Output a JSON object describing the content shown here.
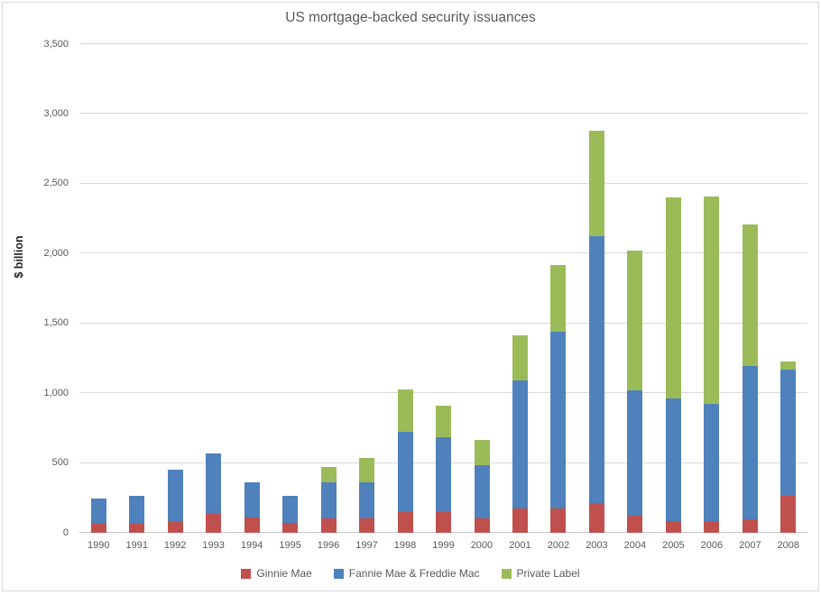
{
  "chart_data": {
    "type": "bar",
    "stacked": true,
    "title": "US mortgage-backed security issuances",
    "ylabel": "$ billion",
    "xlabel": "",
    "categories": [
      "1990",
      "1991",
      "1992",
      "1993",
      "1994",
      "1995",
      "1996",
      "1997",
      "1998",
      "1999",
      "2000",
      "2001",
      "2002",
      "2003",
      "2004",
      "2005",
      "2006",
      "2007",
      "2008"
    ],
    "series": [
      {
        "name": "Ginnie Mae",
        "color": "#C0504D",
        "values": [
          64,
          63,
          82,
          138,
          111,
          73,
          101,
          104,
          149,
          151,
          104,
          175,
          173,
          213,
          125,
          86,
          82,
          95,
          268
        ]
      },
      {
        "name": "Fannie Mae & Freddie Mac",
        "color": "#4F81BD",
        "values": [
          181,
          205,
          373,
          430,
          248,
          190,
          262,
          260,
          577,
          534,
          379,
          915,
          1270,
          1912,
          893,
          879,
          842,
          1100,
          900
        ]
      },
      {
        "name": "Private Label",
        "color": "#9BBB59",
        "values": [
          0,
          0,
          0,
          0,
          0,
          0,
          111,
          175,
          304,
          225,
          182,
          325,
          472,
          755,
          1004,
          1440,
          1484,
          1012,
          62
        ]
      }
    ],
    "ylim": [
      0,
      3500
    ],
    "ytick_step": 500,
    "ytick_labels": [
      "0",
      "500",
      "1,000",
      "1,500",
      "2,000",
      "2,500",
      "3,000",
      "3,500"
    ],
    "grid": true,
    "legend_position": "bottom",
    "colors": {
      "gridline": "#D9D9D9",
      "axis_line": "#C6C6C6",
      "tick_text": "#595959",
      "title_text": "#595959",
      "axis_title_text": "#262626",
      "chart_border": "#D9D9D9",
      "background": "#FFFFFF"
    }
  }
}
